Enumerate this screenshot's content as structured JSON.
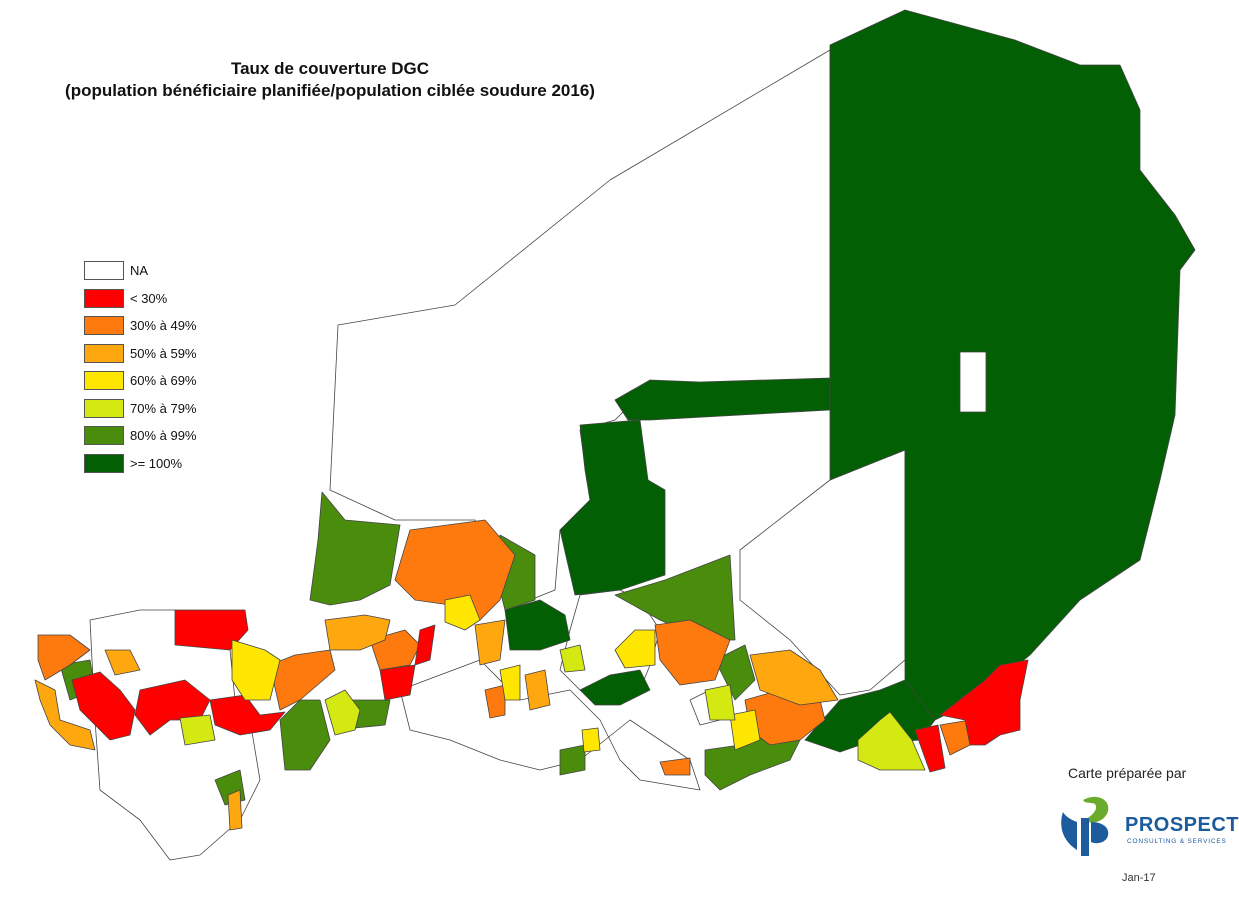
{
  "title": {
    "line1": "Taux de couverture DGC",
    "line2": "(population bénéficiaire planifiée/population ciblée soudure 2016)"
  },
  "legend": [
    {
      "label": "NA",
      "color": "#ffffff"
    },
    {
      "label": "< 30%",
      "color": "#ff0000"
    },
    {
      "label": "30% à 49%",
      "color": "#ff7a0e"
    },
    {
      "label": "50% à 59%",
      "color": "#ffa70f"
    },
    {
      "label": "60% à 69%",
      "color": "#ffe600"
    },
    {
      "label": "70% à 79%",
      "color": "#d4e812"
    },
    {
      "label": "80% à 99%",
      "color": "#4a8c0c"
    },
    {
      "label": ">= 100%",
      "color": "#035f03"
    }
  ],
  "credit": {
    "prepared_by": "Carte préparée par",
    "logo_name": "PROSPECT",
    "logo_sub": "CONSULTING & SERVICES",
    "logo_icon": "prospect-leaf-logo",
    "date": "Jan-17"
  }
}
